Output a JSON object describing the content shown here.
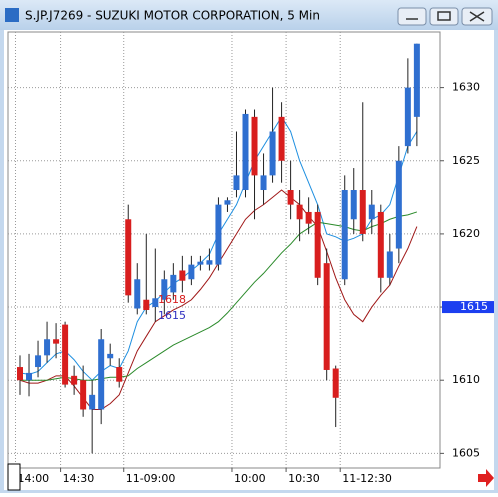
{
  "chart_data": {
    "type": "candlestick",
    "title": "S.JP.J7269 - SUZUKI MOTOR CORPORATION, 5 Min",
    "categories": [
      "14:00",
      null,
      null,
      null,
      null,
      "14:30",
      null,
      null,
      null,
      null,
      null,
      null,
      "11-09:00",
      null,
      null,
      null,
      null,
      null,
      null,
      null,
      null,
      null,
      null,
      null,
      "10:00",
      null,
      null,
      null,
      null,
      null,
      "10:30",
      null,
      null,
      null,
      null,
      null,
      "11-12:30",
      null,
      null,
      null,
      null,
      null,
      null,
      null,
      null
    ],
    "open": [
      1610.9,
      1610.0,
      1610.9,
      1611.7,
      1612.8,
      1613.8,
      1610.3,
      1610.0,
      1608.0,
      1608.0,
      1611.5,
      1610.9,
      1621.0,
      1614.9,
      1615.5,
      1615.0,
      1615.5,
      1616.0,
      1617.5,
      1616.9,
      1617.9,
      1617.9,
      1617.9,
      1622.0,
      1623.0,
      1623.0,
      1628.0,
      1623.0,
      1624.0,
      1628.0,
      1623.0,
      1622.0,
      1621.5,
      1621.5,
      1618.0,
      1610.8,
      1616.9,
      1621.0,
      1623.0,
      1621.0,
      1621.5,
      1617.0,
      1619.0,
      1626.0,
      1628.0
    ],
    "high": [
      1611.7,
      1611.8,
      1612.7,
      1614.0,
      1613.9,
      1614.0,
      1611.0,
      1611.0,
      1610.0,
      1613.5,
      1612.5,
      1611.5,
      1622.0,
      1618.0,
      1620.0,
      1619.0,
      1617.5,
      1618.0,
      1618.5,
      1618.5,
      1618.5,
      1619.0,
      1622.5,
      1622.5,
      1627.0,
      1628.5,
      1628.5,
      1625.5,
      1630.0,
      1629.0,
      1625.0,
      1623.0,
      1622.5,
      1622.0,
      1619.0,
      1611.0,
      1624.0,
      1624.5,
      1629.0,
      1623.0,
      1622.0,
      1620.0,
      1626.0,
      1632.0,
      1633.0
    ],
    "low": [
      1609.0,
      1608.9,
      1610.2,
      1611.2,
      1611.5,
      1609.5,
      1609.0,
      1607.5,
      1605.0,
      1607.0,
      1611.0,
      1609.5,
      1615.3,
      1614.5,
      1614.5,
      1614.0,
      1614.5,
      1615.5,
      1616.0,
      1616.5,
      1617.5,
      1617.5,
      1617.5,
      1621.5,
      1622.5,
      1622.5,
      1621.0,
      1622.0,
      1623.5,
      1623.5,
      1621.0,
      1619.5,
      1620.0,
      1616.5,
      1610.0,
      1606.8,
      1616.5,
      1620.0,
      1619.5,
      1620.0,
      1616.0,
      1616.5,
      1618.0,
      1625.5,
      1626.0
    ],
    "close": [
      1610.0,
      1610.5,
      1611.7,
      1612.8,
      1612.5,
      1609.7,
      1609.7,
      1608.0,
      1609.0,
      1612.8,
      1611.8,
      1609.9,
      1615.8,
      1616.9,
      1614.8,
      1615.6,
      1616.9,
      1617.2,
      1616.8,
      1617.9,
      1618.1,
      1618.2,
      1622.0,
      1622.3,
      1624.0,
      1628.2,
      1624.0,
      1624.0,
      1627.0,
      1625.0,
      1622.0,
      1621.0,
      1620.7,
      1617.0,
      1610.7,
      1608.8,
      1623.0,
      1623.0,
      1620.0,
      1622.0,
      1617.0,
      1618.8,
      1625.0,
      1630.0,
      1633.0
    ],
    "up_color": "#2f6fd0",
    "down_color": "#d81e1e",
    "overlays": [
      {
        "color": "#1e8fe0",
        "values": [
          1610.5,
          1610.4,
          1610.6,
          1611.2,
          1611.8,
          1612.0,
          1611.4,
          1610.6,
          1610.0,
          1610.6,
          1611.0,
          1610.8,
          1612.0,
          1614.0,
          1615.0,
          1615.4,
          1616.0,
          1616.6,
          1617.0,
          1617.5,
          1618.0,
          1618.6,
          1620.0,
          1621.0,
          1622.0,
          1623.5,
          1625.0,
          1626.0,
          1627.0,
          1628.0,
          1627.0,
          1625.0,
          1623.5,
          1622.0,
          1620.0,
          1619.8,
          1619.5,
          1619.7,
          1620.0,
          1621.0,
          1621.3,
          1622.0,
          1624.0,
          1626.0,
          1627.0
        ]
      },
      {
        "color": "#a01818",
        "values": [
          1610.0,
          1609.8,
          1609.8,
          1610.0,
          1610.3,
          1610.3,
          1609.6,
          1608.8,
          1608.0,
          1608.0,
          1608.4,
          1609.0,
          1610.5,
          1612.0,
          1613.0,
          1614.0,
          1614.4,
          1614.8,
          1615.1,
          1615.5,
          1616.2,
          1617.0,
          1618.0,
          1619.0,
          1620.0,
          1621.0,
          1621.6,
          1622.0,
          1622.5,
          1623.0,
          1622.5,
          1622.0,
          1621.2,
          1620.5,
          1618.8,
          1617.0,
          1615.5,
          1614.5,
          1614.0,
          1615.0,
          1615.8,
          1616.5,
          1617.8,
          1619.0,
          1620.5
        ]
      },
      {
        "color": "#2a8a2a",
        "values": [
          1610.0,
          1610.0,
          1610.0,
          1610.0,
          1610.1,
          1610.2,
          1610.1,
          1610.0,
          1610.0,
          1610.1,
          1610.2,
          1610.2,
          1610.3,
          1610.8,
          1611.2,
          1611.6,
          1612.0,
          1612.4,
          1612.7,
          1613.0,
          1613.3,
          1613.6,
          1614.0,
          1614.6,
          1615.3,
          1616.0,
          1616.7,
          1617.3,
          1618.0,
          1618.7,
          1619.3,
          1620.0,
          1620.4,
          1620.8,
          1620.7,
          1620.6,
          1620.5,
          1620.3,
          1620.2,
          1620.5,
          1620.7,
          1621.0,
          1621.2,
          1621.3,
          1621.5
        ]
      }
    ],
    "annotations": [
      {
        "text": "1618",
        "color": "#d81e1e"
      },
      {
        "text": "1615",
        "color": "#3030c0"
      }
    ],
    "price_marker": {
      "value": 1615,
      "label": "1615",
      "color": "#1c3ff0"
    },
    "ylim": [
      1604,
      1633.8
    ],
    "yticks": [
      1605,
      1610,
      1615,
      1620,
      1625,
      1630
    ],
    "grid": true
  }
}
